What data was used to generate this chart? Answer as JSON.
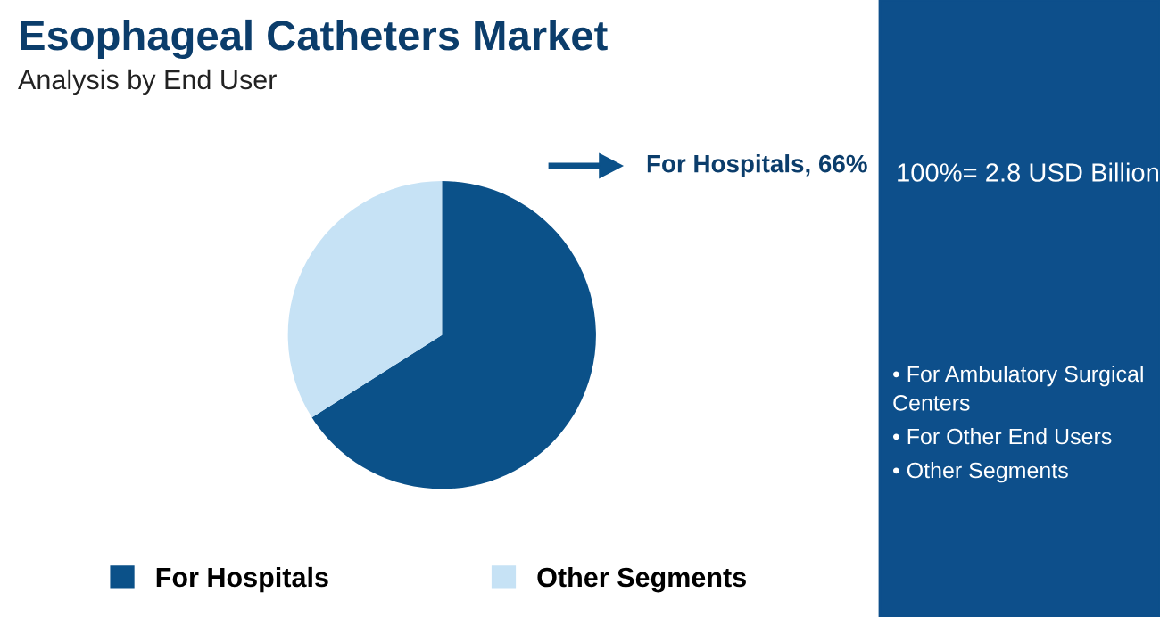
{
  "chart_data": {
    "type": "pie",
    "title": "Esophageal Catheters Market",
    "subtitle": "Analysis by End User",
    "categories": [
      "For Hospitals",
      "Other Segments"
    ],
    "values": [
      66,
      34
    ],
    "colors": [
      "#0b5189",
      "#c6e2f5"
    ],
    "value_labels": [
      "For Hospitals, 66%",
      null
    ],
    "annotations": [
      "100%= 2.8 USD Billion",
      "• For Ambulatory Surgical Centers",
      "• For Other End Users",
      "• Other Segments"
    ],
    "legend": "bottom"
  }
}
